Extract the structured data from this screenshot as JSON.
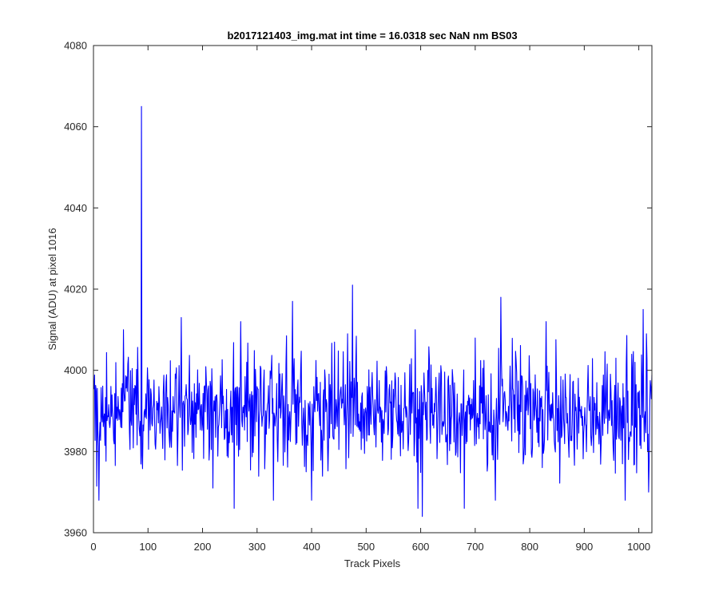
{
  "chart_data": {
    "type": "line",
    "title": "b2017121403_img.mat int time = 16.0318 sec  NaN nm BS03",
    "xlabel": "Track Pixels",
    "ylabel": "Signal (ADU) at pixel 1016",
    "xlim": [
      0,
      1024
    ],
    "ylim": [
      3960,
      4080
    ],
    "x_ticks": [
      0,
      100,
      200,
      300,
      400,
      500,
      600,
      700,
      800,
      900,
      1000
    ],
    "y_ticks": [
      3960,
      3980,
      4000,
      4020,
      4040,
      4060,
      4080
    ],
    "grid": false,
    "legend": "none",
    "series": [
      {
        "color": "#0000ff",
        "baseline": 3990,
        "noise_amplitude": 7,
        "x_range": [
          1,
          1024
        ],
        "peaks": [
          {
            "x": 88,
            "y": 4065
          },
          {
            "x": 475,
            "y": 4021
          },
          {
            "x": 747,
            "y": 4018
          },
          {
            "x": 365,
            "y": 4017
          },
          {
            "x": 1008,
            "y": 4015
          },
          {
            "x": 161,
            "y": 4013
          },
          {
            "x": 270,
            "y": 4012
          },
          {
            "x": 55,
            "y": 4010
          },
          {
            "x": 590,
            "y": 4010
          },
          {
            "x": 830,
            "y": 4012
          }
        ],
        "troughs": [
          {
            "x": 10,
            "y": 3968
          },
          {
            "x": 258,
            "y": 3966
          },
          {
            "x": 603,
            "y": 3964
          },
          {
            "x": 680,
            "y": 3966
          },
          {
            "x": 595,
            "y": 3966
          },
          {
            "x": 737,
            "y": 3968
          },
          {
            "x": 975,
            "y": 3968
          },
          {
            "x": 1018,
            "y": 3970
          },
          {
            "x": 400,
            "y": 3968
          },
          {
            "x": 330,
            "y": 3968
          }
        ]
      }
    ]
  },
  "colors": {
    "line": "#0000ff",
    "axes": "#262626",
    "background": "#ffffff"
  }
}
